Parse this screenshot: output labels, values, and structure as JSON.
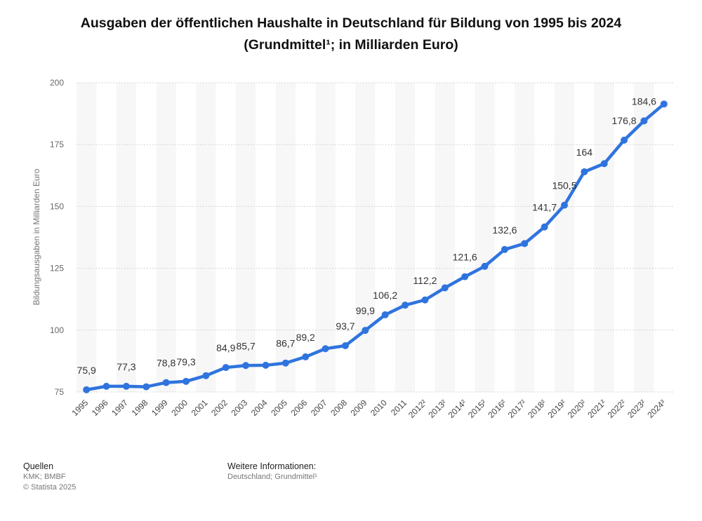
{
  "chart_data": {
    "type": "line",
    "title": "Ausgaben der öffentlichen Haushalte in Deutschland für Bildung von 1995 bis 2024",
    "subtitle": "(Grundmittel¹; in Milliarden Euro)",
    "ylabel": "Bildungsausgaben in Milliarden Euro",
    "xlabel": "",
    "ylim": [
      75,
      200
    ],
    "yticks": [
      75,
      100,
      125,
      150,
      175,
      200
    ],
    "grid": true,
    "categories": [
      "1995",
      "1996",
      "1997",
      "1998",
      "1999",
      "2000",
      "2001",
      "2002",
      "2003",
      "2004",
      "2005",
      "2006",
      "2007",
      "2008",
      "2009",
      "2010",
      "2011",
      "2012²",
      "2013²",
      "2014²",
      "2015²",
      "2016²",
      "2017²",
      "2018²",
      "2019²",
      "2020²",
      "2021²",
      "2022²",
      "2023²",
      "2024³"
    ],
    "values": [
      75.9,
      77.3,
      77.3,
      77.1,
      78.8,
      79.3,
      81.6,
      84.9,
      85.7,
      85.8,
      86.7,
      89.2,
      92.5,
      93.7,
      99.9,
      106.2,
      110.1,
      112.2,
      117.1,
      121.6,
      125.8,
      132.6,
      135.0,
      141.7,
      150.5,
      164,
      167.3,
      176.8,
      184.6,
      191.4
    ],
    "data_labels": [
      {
        "index": 0,
        "text": "75,9"
      },
      {
        "index": 2,
        "text": "77,3"
      },
      {
        "index": 4,
        "text": "78,8"
      },
      {
        "index": 5,
        "text": "79,3"
      },
      {
        "index": 7,
        "text": "84,9"
      },
      {
        "index": 8,
        "text": "85,7"
      },
      {
        "index": 10,
        "text": "86,7"
      },
      {
        "index": 11,
        "text": "89,2"
      },
      {
        "index": 13,
        "text": "93,7"
      },
      {
        "index": 14,
        "text": "99,9"
      },
      {
        "index": 15,
        "text": "106,2"
      },
      {
        "index": 17,
        "text": "112,2"
      },
      {
        "index": 19,
        "text": "121,6"
      },
      {
        "index": 21,
        "text": "132,6"
      },
      {
        "index": 23,
        "text": "141,7"
      },
      {
        "index": 24,
        "text": "150,5"
      },
      {
        "index": 25,
        "text": "164"
      },
      {
        "index": 27,
        "text": "176,8"
      },
      {
        "index": 28,
        "text": "184,6"
      }
    ],
    "line_color": "#2f74de"
  },
  "footer": {
    "sources_heading": "Quellen",
    "sources_line1": "KMK; BMBF",
    "sources_line2": "© Statista 2025",
    "info_heading": "Weitere Informationen:",
    "info_line1": "Deutschland; Grundmittel¹"
  }
}
